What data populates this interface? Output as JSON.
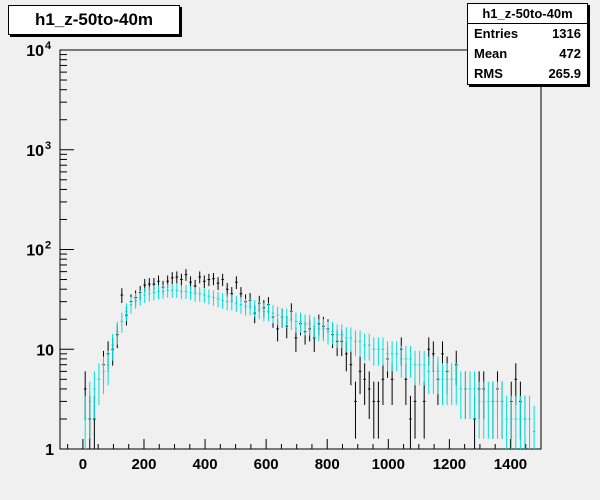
{
  "title": "h1_z-50to-40m",
  "stats": {
    "title": "h1_z-50to-40m",
    "rows": [
      {
        "label": "Entries",
        "value": "1316"
      },
      {
        "label": "Mean",
        "value": "472"
      },
      {
        "label": "RMS",
        "value": "265.9"
      }
    ]
  },
  "colors": {
    "background": "#f0f0f0",
    "frame": "#000000",
    "series_black": "#000000",
    "series_cyan": "#00e0e0"
  },
  "chart_data": {
    "type": "scatter",
    "title": "h1_z-50to-40m",
    "xlabel": "",
    "ylabel": "",
    "xlim": [
      -75,
      1500
    ],
    "ylim": [
      1,
      10000
    ],
    "yscale": "log",
    "x_ticks": [
      0,
      200,
      400,
      600,
      800,
      1000,
      1200,
      1400
    ],
    "y_ticks": [
      {
        "value": 1,
        "base": "1",
        "exp": ""
      },
      {
        "value": 10,
        "base": "10",
        "exp": ""
      },
      {
        "value": 100,
        "base": "10",
        "exp": "2"
      },
      {
        "value": 1000,
        "base": "10",
        "exp": "3"
      },
      {
        "value": 10000,
        "base": "10",
        "exp": "4"
      }
    ],
    "bin_width": 15,
    "grid": false,
    "series": [
      {
        "color": "#000000",
        "points": [
          [
            7.5,
            4
          ],
          [
            22.5,
            2
          ],
          [
            37.5,
            2
          ],
          [
            67.5,
            7
          ],
          [
            82.5,
            9
          ],
          [
            97.5,
            10
          ],
          [
            112.5,
            14
          ],
          [
            127.5,
            35
          ],
          [
            142.5,
            22
          ],
          [
            157.5,
            30
          ],
          [
            172.5,
            33
          ],
          [
            187.5,
            37
          ],
          [
            202.5,
            44
          ],
          [
            217.5,
            45
          ],
          [
            232.5,
            45
          ],
          [
            247.5,
            48
          ],
          [
            262.5,
            42
          ],
          [
            277.5,
            48
          ],
          [
            292.5,
            52
          ],
          [
            307.5,
            53
          ],
          [
            322.5,
            50
          ],
          [
            337.5,
            56
          ],
          [
            352.5,
            47
          ],
          [
            367.5,
            43
          ],
          [
            382.5,
            53
          ],
          [
            397.5,
            48
          ],
          [
            412.5,
            50
          ],
          [
            427.5,
            51
          ],
          [
            442.5,
            46
          ],
          [
            457.5,
            50
          ],
          [
            472.5,
            40
          ],
          [
            487.5,
            36
          ],
          [
            502.5,
            47
          ],
          [
            517.5,
            36
          ],
          [
            532.5,
            30
          ],
          [
            547.5,
            31
          ],
          [
            562.5,
            23
          ],
          [
            577.5,
            29
          ],
          [
            592.5,
            26
          ],
          [
            607.5,
            28
          ],
          [
            622.5,
            21
          ],
          [
            637.5,
            16
          ],
          [
            652.5,
            21
          ],
          [
            667.5,
            17
          ],
          [
            682.5,
            24
          ],
          [
            697.5,
            13
          ],
          [
            712.5,
            18
          ],
          [
            727.5,
            15
          ],
          [
            742.5,
            16
          ],
          [
            757.5,
            13
          ],
          [
            772.5,
            18
          ],
          [
            787.5,
            17
          ],
          [
            802.5,
            16
          ],
          [
            817.5,
            14
          ],
          [
            832.5,
            12
          ],
          [
            847.5,
            12
          ],
          [
            862.5,
            9
          ],
          [
            877.5,
            7
          ],
          [
            892.5,
            3
          ],
          [
            907.5,
            6
          ],
          [
            922.5,
            5
          ],
          [
            937.5,
            4
          ],
          [
            952.5,
            3
          ],
          [
            967.5,
            3
          ],
          [
            982.5,
            5
          ],
          [
            997.5,
            8
          ],
          [
            1012.5,
            5
          ],
          [
            1042.5,
            10
          ],
          [
            1057.5,
            5
          ],
          [
            1072.5,
            2
          ],
          [
            1087.5,
            3
          ],
          [
            1117.5,
            3
          ],
          [
            1132.5,
            10
          ],
          [
            1147.5,
            9
          ],
          [
            1162.5,
            5
          ],
          [
            1177.5,
            9
          ],
          [
            1192.5,
            6
          ],
          [
            1222.5,
            7
          ],
          [
            1252.5,
            4
          ],
          [
            1282.5,
            2
          ],
          [
            1297.5,
            4
          ],
          [
            1312.5,
            4
          ],
          [
            1342.5,
            3
          ],
          [
            1357.5,
            4
          ],
          [
            1372.5,
            3
          ],
          [
            1402.5,
            3
          ],
          [
            1417.5,
            5
          ],
          [
            1432.5,
            3
          ],
          [
            1447.5,
            2
          ]
        ]
      },
      {
        "color": "#00e0e0",
        "points": [
          [
            7.5,
            2
          ],
          [
            22.5,
            3
          ],
          [
            37.5,
            4
          ],
          [
            52.5,
            5
          ],
          [
            67.5,
            6
          ],
          [
            82.5,
            7
          ],
          [
            97.5,
            11
          ],
          [
            112.5,
            15
          ],
          [
            127.5,
            19
          ],
          [
            142.5,
            24
          ],
          [
            157.5,
            28
          ],
          [
            172.5,
            31
          ],
          [
            187.5,
            33
          ],
          [
            202.5,
            35
          ],
          [
            217.5,
            36
          ],
          [
            232.5,
            37
          ],
          [
            247.5,
            38
          ],
          [
            262.5,
            38
          ],
          [
            277.5,
            39
          ],
          [
            292.5,
            39
          ],
          [
            307.5,
            39
          ],
          [
            322.5,
            38
          ],
          [
            337.5,
            38
          ],
          [
            352.5,
            37
          ],
          [
            367.5,
            36
          ],
          [
            382.5,
            36
          ],
          [
            397.5,
            35
          ],
          [
            412.5,
            34
          ],
          [
            427.5,
            33
          ],
          [
            442.5,
            32
          ],
          [
            457.5,
            31
          ],
          [
            472.5,
            30
          ],
          [
            487.5,
            30
          ],
          [
            502.5,
            29
          ],
          [
            517.5,
            28
          ],
          [
            532.5,
            27
          ],
          [
            547.5,
            27
          ],
          [
            562.5,
            26
          ],
          [
            577.5,
            25
          ],
          [
            592.5,
            24
          ],
          [
            607.5,
            24
          ],
          [
            622.5,
            23
          ],
          [
            637.5,
            22
          ],
          [
            652.5,
            21
          ],
          [
            667.5,
            21
          ],
          [
            682.5,
            20
          ],
          [
            697.5,
            19
          ],
          [
            712.5,
            19
          ],
          [
            727.5,
            18
          ],
          [
            742.5,
            18
          ],
          [
            757.5,
            17
          ],
          [
            772.5,
            16
          ],
          [
            787.5,
            16
          ],
          [
            802.5,
            15
          ],
          [
            817.5,
            15
          ],
          [
            832.5,
            14
          ],
          [
            847.5,
            14
          ],
          [
            862.5,
            13
          ],
          [
            877.5,
            13
          ],
          [
            892.5,
            12
          ],
          [
            907.5,
            12
          ],
          [
            922.5,
            11
          ],
          [
            937.5,
            11
          ],
          [
            952.5,
            10
          ],
          [
            967.5,
            10
          ],
          [
            982.5,
            10
          ],
          [
            997.5,
            9
          ],
          [
            1012.5,
            9
          ],
          [
            1027.5,
            9
          ],
          [
            1042.5,
            8
          ],
          [
            1057.5,
            8
          ],
          [
            1072.5,
            8
          ],
          [
            1087.5,
            7
          ],
          [
            1102.5,
            7
          ],
          [
            1117.5,
            7
          ],
          [
            1132.5,
            6
          ],
          [
            1147.5,
            6
          ],
          [
            1162.5,
            6
          ],
          [
            1177.5,
            5
          ],
          [
            1192.5,
            5
          ],
          [
            1207.5,
            5
          ],
          [
            1222.5,
            5
          ],
          [
            1237.5,
            4
          ],
          [
            1252.5,
            4
          ],
          [
            1267.5,
            4
          ],
          [
            1282.5,
            4
          ],
          [
            1297.5,
            3
          ],
          [
            1312.5,
            3
          ],
          [
            1327.5,
            3
          ],
          [
            1342.5,
            3
          ],
          [
            1357.5,
            3
          ],
          [
            1372.5,
            3
          ],
          [
            1387.5,
            2
          ],
          [
            1402.5,
            2
          ],
          [
            1417.5,
            2
          ],
          [
            1432.5,
            2
          ],
          [
            1447.5,
            2
          ],
          [
            1462.5,
            2
          ],
          [
            1477.5,
            1.5
          ]
        ]
      }
    ]
  }
}
